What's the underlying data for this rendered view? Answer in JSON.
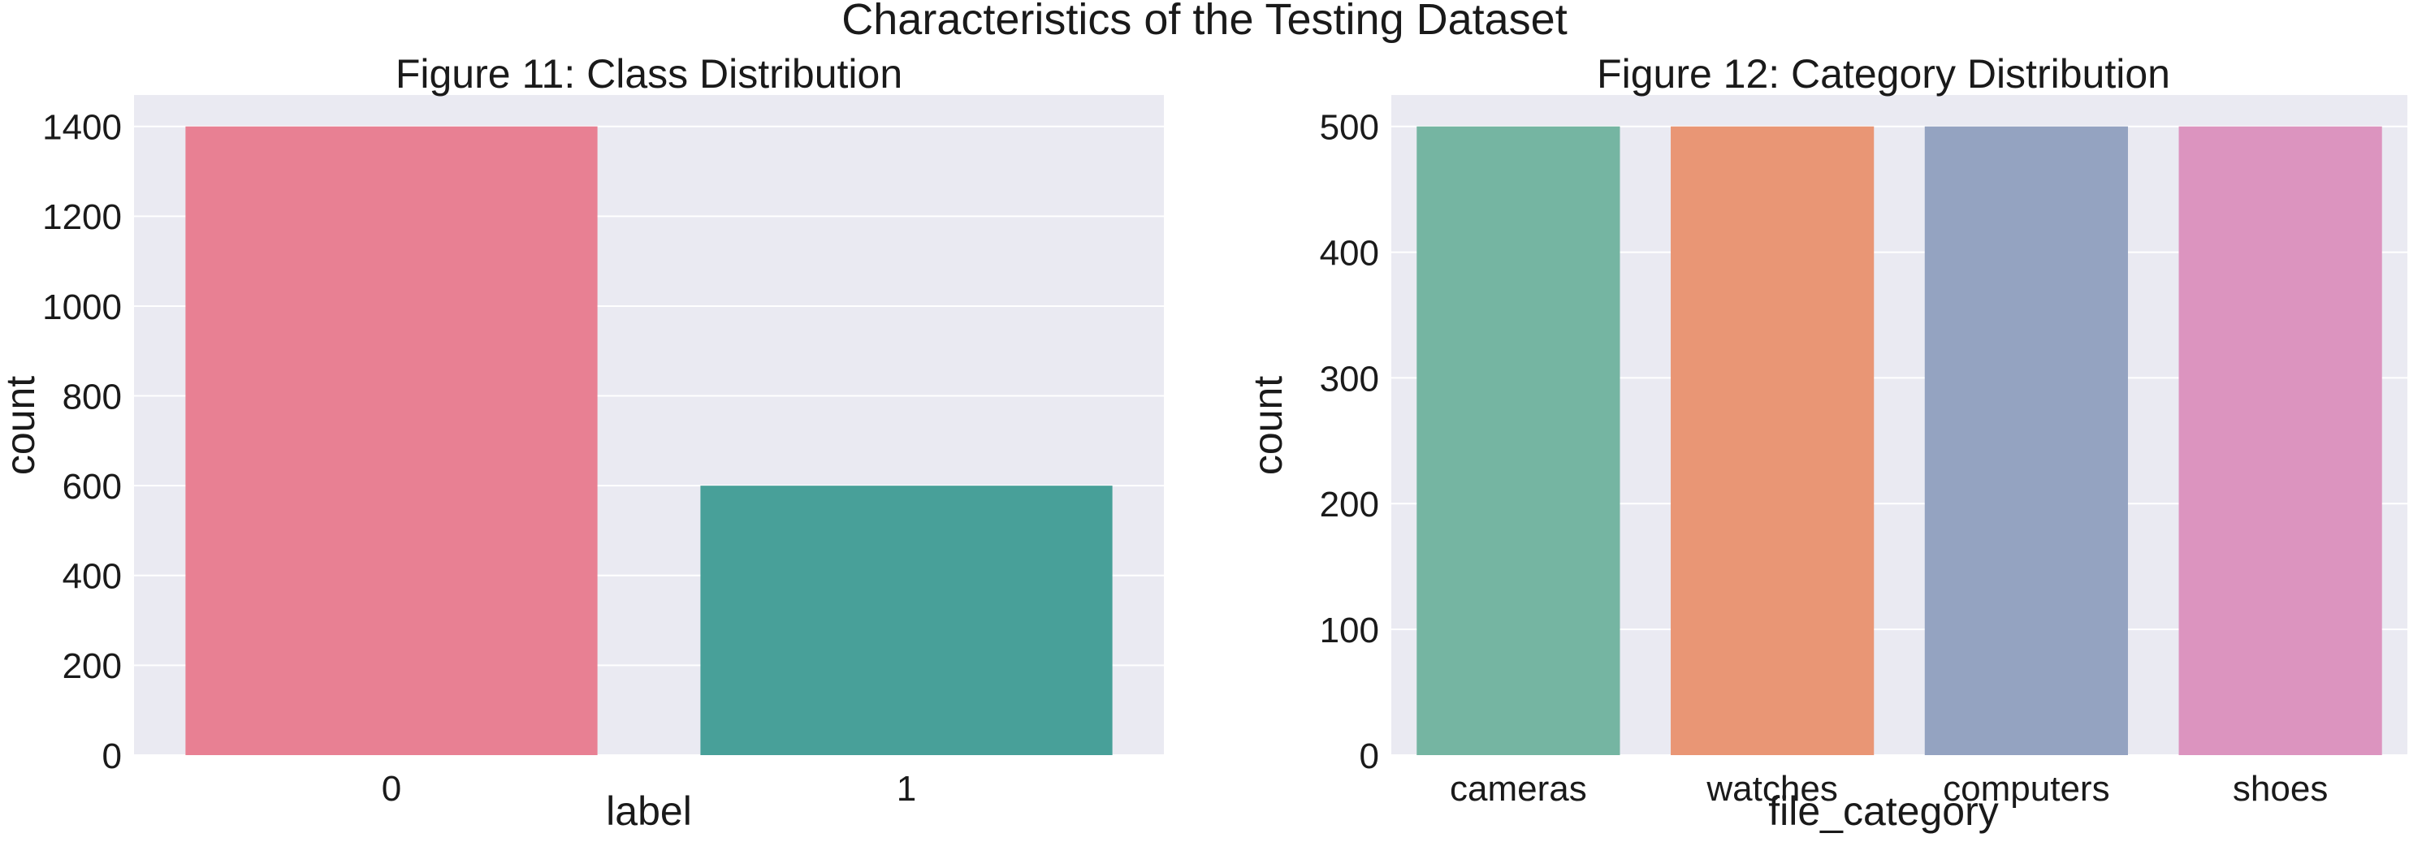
{
  "suptitle": "Characteristics of the Testing Dataset",
  "colors": {
    "plot_background": "#EAEAF2",
    "grid": "#FFFFFF",
    "text": "#1A1A1A"
  },
  "chart_data": [
    {
      "type": "bar",
      "title": "Figure 11: Class Distribution",
      "xlabel": "label",
      "ylabel": "count",
      "categories": [
        "0",
        "1"
      ],
      "values": [
        1400,
        600
      ],
      "colors": [
        "#E88093",
        "#48A099"
      ],
      "ylim": [
        0,
        1470
      ],
      "yticks": [
        0,
        200,
        400,
        600,
        800,
        1000,
        1200,
        1400
      ],
      "grid": true,
      "legend": "none"
    },
    {
      "type": "bar",
      "title": "Figure 12: Category Distribution",
      "xlabel": "file_category",
      "ylabel": "count",
      "categories": [
        "cameras",
        "watches",
        "computers",
        "shoes"
      ],
      "values": [
        500,
        500,
        500,
        500
      ],
      "colors": [
        "#75B5A2",
        "#E99675",
        "#94A3C1",
        "#DC94BF"
      ],
      "ylim": [
        0,
        525
      ],
      "yticks": [
        0,
        100,
        200,
        300,
        400,
        500
      ],
      "grid": true,
      "legend": "none"
    }
  ]
}
